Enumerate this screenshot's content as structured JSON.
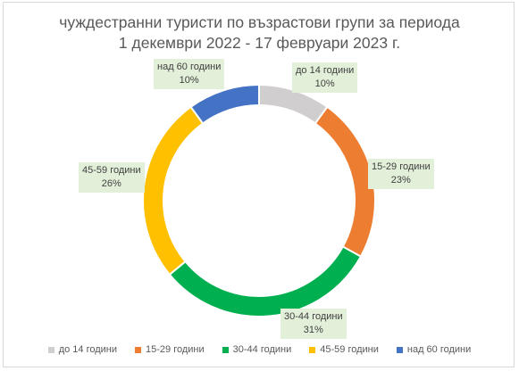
{
  "chart_data": {
    "type": "pie",
    "variant": "doughnut",
    "title_lines": [
      "чуждестранни туристи по възрастови групи за периода",
      "1 декември 2022 - 17 февруари 2023 г."
    ],
    "legend_position": "bottom",
    "slices": [
      {
        "label": "до 14 години",
        "value": 10,
        "value_label": "10%",
        "color": "#d0cece"
      },
      {
        "label": "15-29 години",
        "value": 23,
        "value_label": "23%",
        "color": "#ed7d31"
      },
      {
        "label": "30-44 години",
        "value": 31,
        "value_label": "31%",
        "color": "#00b050"
      },
      {
        "label": "45-59 години",
        "value": 26,
        "value_label": "26%",
        "color": "#ffc000"
      },
      {
        "label": "над 60 години",
        "value": 10,
        "value_label": "10%",
        "color": "#4472c4"
      }
    ]
  }
}
